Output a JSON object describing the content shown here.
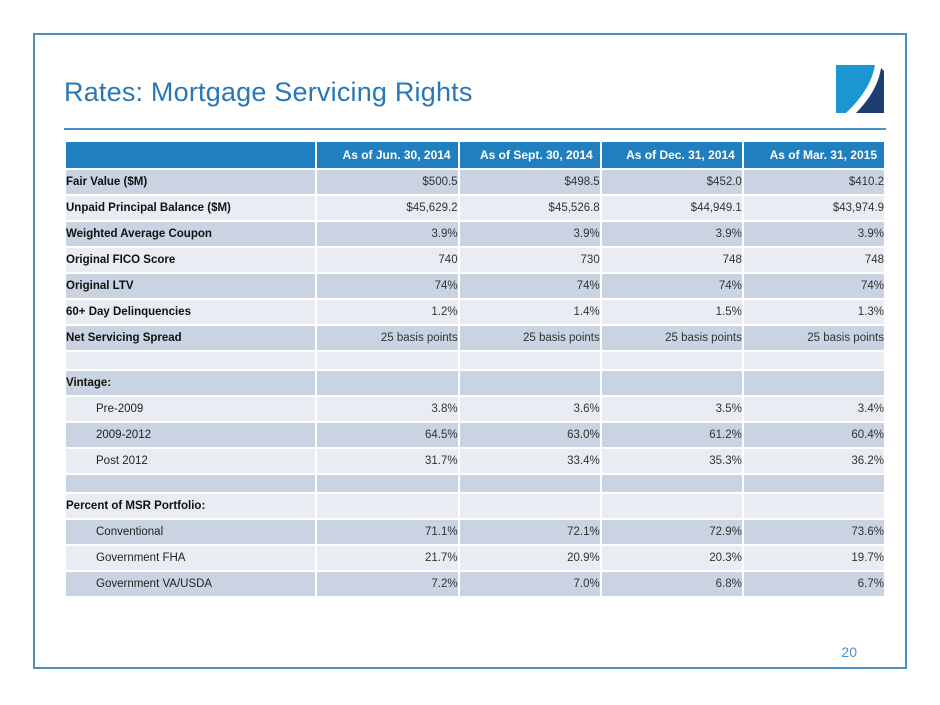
{
  "slide": {
    "title": "Rates: Mortgage Servicing Rights",
    "page_number": "20"
  },
  "table": {
    "columns": [
      "As of Jun. 30, 2014",
      "As of Sept. 30, 2014",
      "As of Dec. 31, 2014",
      "As of Mar. 31, 2015"
    ],
    "rows": [
      {
        "label": "Fair Value ($M)",
        "style": "bold",
        "values": [
          "$500.5",
          "$498.5",
          "$452.0",
          "$410.2"
        ]
      },
      {
        "label": "Unpaid Principal Balance ($M)",
        "style": "bold",
        "values": [
          "$45,629.2",
          "$45,526.8",
          "$44,949.1",
          "$43,974.9"
        ]
      },
      {
        "label": "Weighted Average Coupon",
        "style": "bold",
        "values": [
          "3.9%",
          "3.9%",
          "3.9%",
          "3.9%"
        ]
      },
      {
        "label": "Original FICO Score",
        "style": "bold",
        "values": [
          "740",
          "730",
          "748",
          "748"
        ]
      },
      {
        "label": "Original LTV",
        "style": "bold",
        "values": [
          "74%",
          "74%",
          "74%",
          "74%"
        ]
      },
      {
        "label": "60+ Day Delinquencies",
        "style": "bold",
        "values": [
          "1.2%",
          "1.4%",
          "1.5%",
          "1.3%"
        ]
      },
      {
        "label": "Net Servicing Spread",
        "style": "bold",
        "values": [
          "25 basis points",
          "25 basis points",
          "25 basis points",
          "25 basis points"
        ]
      },
      {
        "label": "",
        "style": "spacer",
        "values": [
          "",
          "",
          "",
          ""
        ]
      },
      {
        "label": "Vintage:",
        "style": "bold",
        "values": [
          "",
          "",
          "",
          ""
        ]
      },
      {
        "label": "Pre-2009",
        "style": "indent",
        "values": [
          "3.8%",
          "3.6%",
          "3.5%",
          "3.4%"
        ]
      },
      {
        "label": "2009-2012",
        "style": "indent",
        "values": [
          "64.5%",
          "63.0%",
          "61.2%",
          "60.4%"
        ]
      },
      {
        "label": "Post 2012",
        "style": "indent",
        "values": [
          "31.7%",
          "33.4%",
          "35.3%",
          "36.2%"
        ]
      },
      {
        "label": "",
        "style": "spacer",
        "values": [
          "",
          "",
          "",
          ""
        ]
      },
      {
        "label": "Percent of MSR Portfolio:",
        "style": "bold",
        "values": [
          "",
          "",
          "",
          ""
        ]
      },
      {
        "label": "Conventional",
        "style": "indent",
        "values": [
          "71.1%",
          "72.1%",
          "72.9%",
          "73.6%"
        ]
      },
      {
        "label": "Government FHA",
        "style": "indent",
        "values": [
          "21.7%",
          "20.9%",
          "20.3%",
          "19.7%"
        ]
      },
      {
        "label": "Government VA/USDA",
        "style": "indent",
        "values": [
          "7.2%",
          "7.0%",
          "6.8%",
          "6.7%"
        ]
      }
    ]
  },
  "colors": {
    "title_blue": "#2878b8",
    "header_bg": "#1f7fbf",
    "row_dark": "#cad3e2",
    "row_light": "#e9ecf3",
    "frame_border": "#4a90c8",
    "logo_light_blue": "#1a96d2",
    "logo_navy": "#1b3e6e"
  }
}
